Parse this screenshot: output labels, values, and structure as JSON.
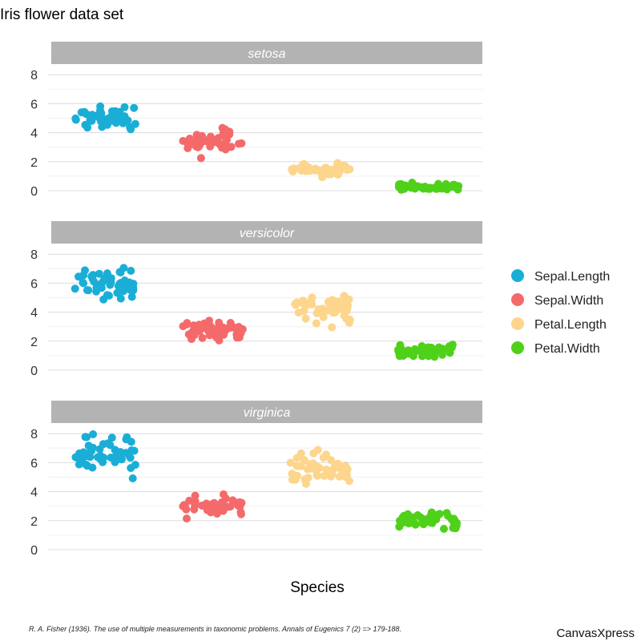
{
  "chart_data": {
    "type": "scatter",
    "title": "Iris flower data set",
    "xlabel": "Species",
    "ylabel": "",
    "ylim": [
      0,
      8.5
    ],
    "y_ticks": [
      0,
      2,
      4,
      6,
      8
    ],
    "grid": true,
    "legend_position": "right",
    "categories": [
      "Sepal.Length",
      "Sepal.Width",
      "Petal.Length",
      "Petal.Width"
    ],
    "series": [
      {
        "name": "Sepal.Length",
        "color": "#1aaed7"
      },
      {
        "name": "Sepal.Width",
        "color": "#f46a6a"
      },
      {
        "name": "Petal.Length",
        "color": "#fdd58c"
      },
      {
        "name": "Petal.Width",
        "color": "#4fd11a"
      }
    ],
    "panels": [
      {
        "name": "setosa",
        "values": {
          "Sepal.Length": [
            5.1,
            4.9,
            4.7,
            4.6,
            5.0,
            5.4,
            4.6,
            5.0,
            4.4,
            4.9,
            5.4,
            4.8,
            4.8,
            4.3,
            5.8,
            5.7,
            5.4,
            5.1,
            5.7,
            5.1,
            5.4,
            5.1,
            4.6,
            5.1,
            4.8,
            5.0,
            5.0,
            5.2,
            5.2,
            4.7,
            4.8,
            5.4,
            5.2,
            5.5,
            4.9,
            5.0,
            5.5,
            4.9,
            4.4,
            5.1,
            5.0,
            4.5,
            4.4,
            5.0,
            5.1,
            4.8,
            5.1,
            4.6,
            5.3,
            5.0
          ],
          "Sepal.Width": [
            3.5,
            3.0,
            3.2,
            3.1,
            3.6,
            3.9,
            3.4,
            3.4,
            2.9,
            3.1,
            3.7,
            3.4,
            3.0,
            3.0,
            4.0,
            4.4,
            3.9,
            3.5,
            3.8,
            3.8,
            3.4,
            3.7,
            3.6,
            3.3,
            3.4,
            3.0,
            3.4,
            3.5,
            3.4,
            3.2,
            3.1,
            3.4,
            4.1,
            4.2,
            3.1,
            3.2,
            3.5,
            3.6,
            3.0,
            3.4,
            3.5,
            2.3,
            3.2,
            3.5,
            3.8,
            3.0,
            3.8,
            3.2,
            3.7,
            3.3
          ],
          "Petal.Length": [
            1.4,
            1.4,
            1.3,
            1.5,
            1.4,
            1.7,
            1.4,
            1.5,
            1.4,
            1.5,
            1.5,
            1.6,
            1.4,
            1.1,
            1.2,
            1.5,
            1.3,
            1.4,
            1.7,
            1.5,
            1.7,
            1.5,
            1.0,
            1.7,
            1.9,
            1.6,
            1.6,
            1.5,
            1.4,
            1.6,
            1.6,
            1.5,
            1.5,
            1.4,
            1.5,
            1.2,
            1.3,
            1.4,
            1.3,
            1.5,
            1.3,
            1.3,
            1.3,
            1.6,
            1.9,
            1.4,
            1.6,
            1.4,
            1.5,
            1.4
          ],
          "Petal.Width": [
            0.2,
            0.2,
            0.2,
            0.2,
            0.2,
            0.4,
            0.3,
            0.2,
            0.2,
            0.1,
            0.2,
            0.2,
            0.1,
            0.1,
            0.2,
            0.4,
            0.4,
            0.3,
            0.3,
            0.3,
            0.2,
            0.4,
            0.2,
            0.5,
            0.2,
            0.2,
            0.4,
            0.2,
            0.2,
            0.2,
            0.2,
            0.4,
            0.1,
            0.2,
            0.2,
            0.2,
            0.2,
            0.1,
            0.2,
            0.2,
            0.3,
            0.3,
            0.2,
            0.6,
            0.4,
            0.3,
            0.2,
            0.2,
            0.2,
            0.2
          ]
        }
      },
      {
        "name": "versicolor",
        "values": {
          "Sepal.Length": [
            7.0,
            6.4,
            6.9,
            5.5,
            6.5,
            5.7,
            6.3,
            4.9,
            6.6,
            5.2,
            5.0,
            5.9,
            6.0,
            6.1,
            5.6,
            6.7,
            5.6,
            5.8,
            6.2,
            5.6,
            5.9,
            6.1,
            6.3,
            6.1,
            6.4,
            6.6,
            6.8,
            6.7,
            6.0,
            5.7,
            5.5,
            5.5,
            5.8,
            6.0,
            5.4,
            6.0,
            6.7,
            6.3,
            5.6,
            5.5,
            5.5,
            6.1,
            5.8,
            5.0,
            5.6,
            5.7,
            5.7,
            6.2,
            5.1,
            5.7
          ],
          "Sepal.Width": [
            3.2,
            3.2,
            3.1,
            2.3,
            2.8,
            2.8,
            3.3,
            2.4,
            2.9,
            2.7,
            2.0,
            3.0,
            2.2,
            2.9,
            2.9,
            3.1,
            3.0,
            2.7,
            2.2,
            2.5,
            3.2,
            2.8,
            2.5,
            2.8,
            2.9,
            3.0,
            2.8,
            3.0,
            2.9,
            2.6,
            2.4,
            2.4,
            2.7,
            2.7,
            3.0,
            3.4,
            3.1,
            2.3,
            3.0,
            2.5,
            2.6,
            3.0,
            2.6,
            2.3,
            2.7,
            3.0,
            2.9,
            2.9,
            2.5,
            2.8
          ],
          "Petal.Length": [
            4.7,
            4.5,
            4.9,
            4.0,
            4.6,
            4.5,
            4.7,
            3.3,
            4.6,
            3.9,
            3.5,
            4.2,
            4.0,
            4.7,
            3.6,
            4.4,
            4.5,
            4.1,
            4.5,
            3.9,
            4.8,
            4.0,
            4.9,
            4.7,
            4.3,
            4.4,
            4.8,
            5.0,
            4.5,
            3.5,
            3.8,
            3.7,
            3.9,
            5.1,
            4.5,
            4.5,
            4.7,
            4.4,
            4.1,
            4.0,
            4.4,
            4.6,
            4.0,
            3.3,
            4.2,
            4.2,
            4.2,
            4.3,
            3.0,
            4.1
          ],
          "Petal.Width": [
            1.4,
            1.5,
            1.5,
            1.3,
            1.5,
            1.3,
            1.6,
            1.0,
            1.3,
            1.4,
            1.0,
            1.5,
            1.0,
            1.4,
            1.3,
            1.4,
            1.5,
            1.0,
            1.5,
            1.1,
            1.8,
            1.3,
            1.5,
            1.2,
            1.3,
            1.4,
            1.4,
            1.7,
            1.5,
            1.0,
            1.1,
            1.0,
            1.2,
            1.6,
            1.5,
            1.6,
            1.5,
            1.3,
            1.3,
            1.3,
            1.2,
            1.4,
            1.2,
            1.0,
            1.3,
            1.2,
            1.3,
            1.3,
            1.1,
            1.3
          ]
        }
      },
      {
        "name": "virginica",
        "values": {
          "Sepal.Length": [
            6.3,
            5.8,
            7.1,
            6.3,
            6.5,
            7.6,
            4.9,
            7.3,
            6.7,
            7.2,
            6.5,
            6.4,
            6.8,
            5.7,
            5.8,
            6.4,
            6.5,
            7.7,
            7.7,
            6.0,
            6.9,
            5.6,
            7.7,
            6.3,
            6.7,
            7.2,
            6.2,
            6.1,
            6.4,
            7.2,
            7.4,
            7.9,
            6.4,
            6.3,
            6.1,
            7.7,
            6.3,
            6.4,
            6.0,
            6.9,
            6.7,
            6.9,
            5.8,
            6.8,
            6.7,
            6.7,
            6.3,
            6.5,
            6.2,
            5.9
          ],
          "Sepal.Width": [
            3.3,
            2.7,
            3.0,
            2.9,
            3.0,
            3.0,
            2.5,
            2.9,
            2.5,
            3.6,
            3.2,
            2.7,
            3.0,
            2.5,
            2.8,
            3.2,
            3.0,
            3.8,
            2.6,
            2.2,
            3.2,
            2.8,
            2.8,
            2.7,
            3.3,
            3.2,
            2.8,
            3.0,
            2.8,
            3.0,
            2.8,
            3.8,
            2.8,
            2.8,
            2.6,
            3.0,
            3.4,
            3.1,
            3.0,
            3.1,
            3.1,
            3.1,
            2.7,
            3.2,
            3.3,
            3.0,
            2.5,
            3.0,
            3.4,
            3.0
          ],
          "Petal.Length": [
            6.0,
            5.1,
            5.9,
            5.6,
            5.8,
            6.6,
            4.5,
            6.3,
            5.8,
            6.1,
            5.1,
            5.3,
            5.5,
            5.0,
            5.1,
            5.3,
            5.5,
            6.7,
            6.9,
            5.0,
            5.7,
            4.9,
            6.7,
            4.9,
            5.7,
            6.0,
            4.8,
            4.9,
            5.6,
            5.8,
            6.1,
            6.4,
            5.6,
            5.1,
            5.6,
            6.1,
            5.6,
            5.5,
            4.8,
            5.4,
            5.6,
            5.1,
            5.1,
            5.9,
            5.7,
            5.2,
            5.0,
            5.2,
            5.4,
            5.1
          ],
          "Petal.Width": [
            2.5,
            1.9,
            2.1,
            1.8,
            2.2,
            2.1,
            1.7,
            1.8,
            1.8,
            2.5,
            2.0,
            1.9,
            2.1,
            2.0,
            2.4,
            2.3,
            1.8,
            2.2,
            2.3,
            1.5,
            2.3,
            2.0,
            2.0,
            1.8,
            2.1,
            1.8,
            1.8,
            1.8,
            2.1,
            1.6,
            1.9,
            2.0,
            2.2,
            1.5,
            1.4,
            2.3,
            2.4,
            1.8,
            1.8,
            2.1,
            2.4,
            2.3,
            1.9,
            2.3,
            2.5,
            2.3,
            1.9,
            2.0,
            2.3,
            1.8
          ]
        }
      }
    ]
  },
  "footer": {
    "citation": "R. A. Fisher (1936). The use of multiple measurements in taxonomic problems. Annals of Eugenics 7 (2) => 179-188.",
    "brand": "CanvasXpress"
  }
}
